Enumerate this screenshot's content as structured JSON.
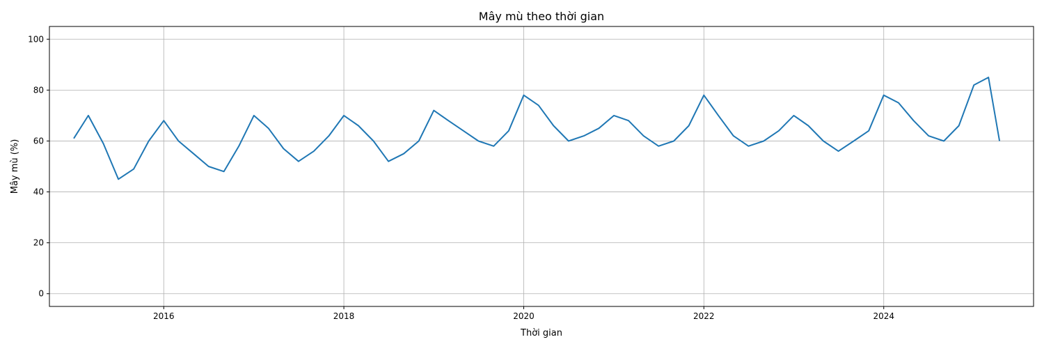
{
  "chart_data": {
    "type": "line",
    "title": "Mây mù theo thời gian",
    "xlabel": "Thời gian",
    "ylabel": "Mây mù (%)",
    "x_ticks": [
      "2016",
      "2018",
      "2020",
      "2022",
      "2024"
    ],
    "y_ticks": [
      "0",
      "20",
      "40",
      "60",
      "80",
      "100"
    ],
    "xlim": [
      "2014-09-24",
      "2025-08-31"
    ],
    "ylim": [
      -5,
      105
    ],
    "grid": true,
    "series": [
      {
        "color": "#1f77b4",
        "x": [
          "2015-01-01",
          "2015-03-01",
          "2015-05-01",
          "2015-07-01",
          "2015-09-01",
          "2015-11-01",
          "2016-01-01",
          "2016-03-01",
          "2016-05-01",
          "2016-07-01",
          "2016-09-01",
          "2016-11-01",
          "2017-01-01",
          "2017-03-01",
          "2017-05-01",
          "2017-07-01",
          "2017-09-01",
          "2017-11-01",
          "2018-01-01",
          "2018-03-01",
          "2018-05-01",
          "2018-07-01",
          "2018-09-01",
          "2018-11-01",
          "2019-01-01",
          "2019-03-01",
          "2019-05-01",
          "2019-07-01",
          "2019-09-01",
          "2019-11-01",
          "2020-01-01",
          "2020-03-01",
          "2020-05-01",
          "2020-07-01",
          "2020-09-01",
          "2020-11-01",
          "2021-01-01",
          "2021-03-01",
          "2021-05-01",
          "2021-07-01",
          "2021-09-01",
          "2021-11-01",
          "2022-01-01",
          "2022-03-01",
          "2022-05-01",
          "2022-07-01",
          "2022-09-01",
          "2022-11-01",
          "2023-01-01",
          "2023-03-01",
          "2023-05-01",
          "2023-07-01",
          "2023-09-01",
          "2023-11-01",
          "2024-01-01",
          "2024-03-01",
          "2024-05-01",
          "2024-07-01",
          "2024-09-01",
          "2024-11-01",
          "2025-01-01",
          "2025-03-01",
          "2025-04-15"
        ],
        "y": [
          61,
          70,
          59,
          45,
          49,
          60,
          68,
          60,
          55,
          50,
          48,
          58,
          70,
          65,
          57,
          52,
          56,
          62,
          70,
          66,
          60,
          52,
          55,
          60,
          72,
          68,
          64,
          60,
          58,
          64,
          78,
          74,
          66,
          60,
          62,
          65,
          70,
          68,
          62,
          58,
          60,
          66,
          78,
          70,
          62,
          58,
          60,
          64,
          70,
          66,
          60,
          56,
          60,
          64,
          78,
          75,
          68,
          62,
          60,
          66,
          82,
          85,
          60
        ]
      }
    ]
  }
}
